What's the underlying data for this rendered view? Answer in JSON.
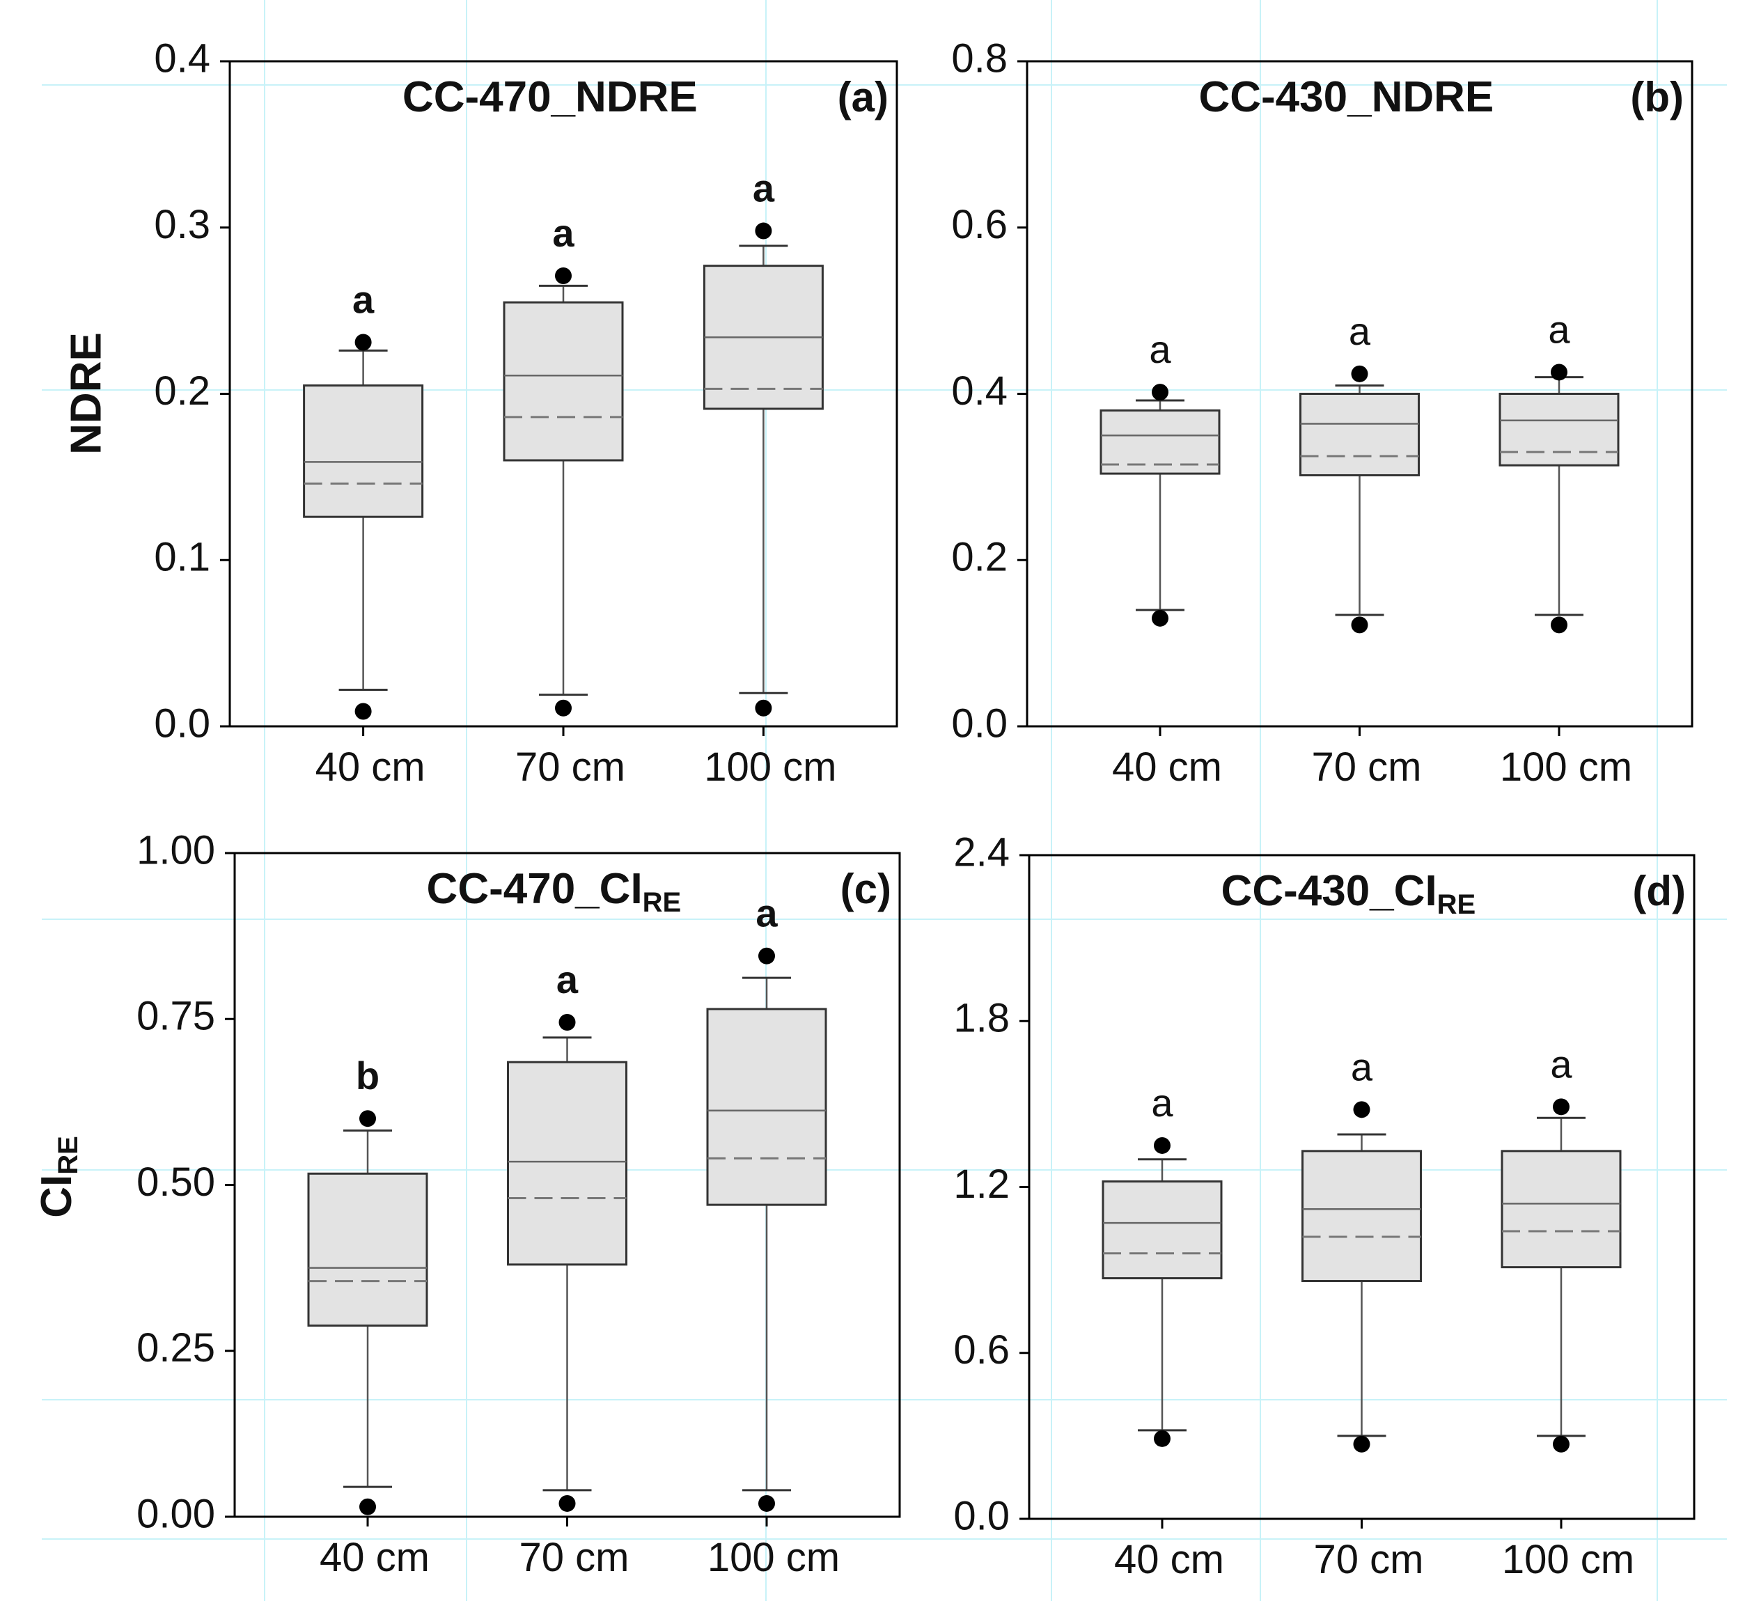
{
  "figure": {
    "y_labels": {
      "top": "NDRE",
      "bottom_main": "CI",
      "bottom_sub": "RE"
    }
  },
  "chart_data": [
    {
      "type": "box",
      "panel": "(a)",
      "title": "CC-470_NDRE",
      "title_sub": "",
      "ylabel": "NDRE",
      "ylim": [
        0,
        0.4
      ],
      "yticks": [
        "0.0",
        "0.1",
        "0.2",
        "0.3",
        "0.4"
      ],
      "categories": [
        "40 cm",
        "70 cm",
        "100 cm"
      ],
      "sig_bold": true,
      "boxes": [
        {
          "category": "40 cm",
          "q1": 0.126,
          "median": 0.159,
          "mean": 0.146,
          "q3": 0.205,
          "whisker_low": 0.022,
          "whisker_high": 0.226,
          "outlier_low": 0.009,
          "outlier_high": 0.231,
          "letter": "a"
        },
        {
          "category": "70 cm",
          "q1": 0.16,
          "median": 0.211,
          "mean": 0.186,
          "q3": 0.255,
          "whisker_low": 0.019,
          "whisker_high": 0.265,
          "outlier_low": 0.011,
          "outlier_high": 0.271,
          "letter": "a"
        },
        {
          "category": "100 cm",
          "q1": 0.191,
          "median": 0.234,
          "mean": 0.203,
          "q3": 0.277,
          "whisker_low": 0.02,
          "whisker_high": 0.289,
          "outlier_low": 0.011,
          "outlier_high": 0.298,
          "letter": "a"
        }
      ]
    },
    {
      "type": "box",
      "panel": "(b)",
      "title": "CC-430_NDRE",
      "title_sub": "",
      "ylabel": "",
      "ylim": [
        0,
        0.8
      ],
      "yticks": [
        "0.0",
        "0.2",
        "0.4",
        "0.6",
        "0.8"
      ],
      "categories": [
        "40 cm",
        "70 cm",
        "100 cm"
      ],
      "sig_bold": false,
      "boxes": [
        {
          "category": "40 cm",
          "q1": 0.304,
          "median": 0.35,
          "mean": 0.315,
          "q3": 0.38,
          "whisker_low": 0.14,
          "whisker_high": 0.392,
          "outlier_low": 0.13,
          "outlier_high": 0.402,
          "letter": "a"
        },
        {
          "category": "70 cm",
          "q1": 0.302,
          "median": 0.364,
          "mean": 0.325,
          "q3": 0.4,
          "whisker_low": 0.134,
          "whisker_high": 0.41,
          "outlier_low": 0.122,
          "outlier_high": 0.424,
          "letter": "a"
        },
        {
          "category": "100 cm",
          "q1": 0.314,
          "median": 0.368,
          "mean": 0.33,
          "q3": 0.4,
          "whisker_low": 0.134,
          "whisker_high": 0.42,
          "outlier_low": 0.122,
          "outlier_high": 0.426,
          "letter": "a"
        }
      ]
    },
    {
      "type": "box",
      "panel": "(c)",
      "title": "CC-470_CI",
      "title_sub": "RE",
      "ylabel": "CIRE",
      "ylim": [
        0,
        1.0
      ],
      "yticks": [
        "0.00",
        "0.25",
        "0.50",
        "0.75",
        "1.00"
      ],
      "categories": [
        "40 cm",
        "70 cm",
        "100 cm"
      ],
      "sig_bold": true,
      "boxes": [
        {
          "category": "40 cm",
          "q1": 0.288,
          "median": 0.375,
          "mean": 0.355,
          "q3": 0.517,
          "whisker_low": 0.045,
          "whisker_high": 0.582,
          "outlier_low": 0.015,
          "outlier_high": 0.6,
          "letter": "b"
        },
        {
          "category": "70 cm",
          "q1": 0.38,
          "median": 0.535,
          "mean": 0.48,
          "q3": 0.685,
          "whisker_low": 0.04,
          "whisker_high": 0.722,
          "outlier_low": 0.02,
          "outlier_high": 0.745,
          "letter": "a"
        },
        {
          "category": "100 cm",
          "q1": 0.47,
          "median": 0.612,
          "mean": 0.54,
          "q3": 0.765,
          "whisker_low": 0.04,
          "whisker_high": 0.812,
          "outlier_low": 0.02,
          "outlier_high": 0.845,
          "letter": "a"
        }
      ]
    },
    {
      "type": "box",
      "panel": "(d)",
      "title": "CC-430_CI",
      "title_sub": "RE",
      "ylabel": "",
      "ylim": [
        0,
        2.4
      ],
      "yticks": [
        "0.0",
        "0.6",
        "1.2",
        "1.8",
        "2.4"
      ],
      "categories": [
        "40 cm",
        "70 cm",
        "100 cm"
      ],
      "sig_bold": false,
      "boxes": [
        {
          "category": "40 cm",
          "q1": 0.87,
          "median": 1.07,
          "mean": 0.96,
          "q3": 1.22,
          "whisker_low": 0.32,
          "whisker_high": 1.3,
          "outlier_low": 0.29,
          "outlier_high": 1.35,
          "letter": "a"
        },
        {
          "category": "70 cm",
          "q1": 0.86,
          "median": 1.12,
          "mean": 1.02,
          "q3": 1.33,
          "whisker_low": 0.3,
          "whisker_high": 1.39,
          "outlier_low": 0.27,
          "outlier_high": 1.48,
          "letter": "a"
        },
        {
          "category": "100 cm",
          "q1": 0.91,
          "median": 1.14,
          "mean": 1.04,
          "q3": 1.33,
          "whisker_low": 0.3,
          "whisker_high": 1.45,
          "outlier_low": 0.27,
          "outlier_high": 1.49,
          "letter": "a"
        }
      ]
    }
  ]
}
